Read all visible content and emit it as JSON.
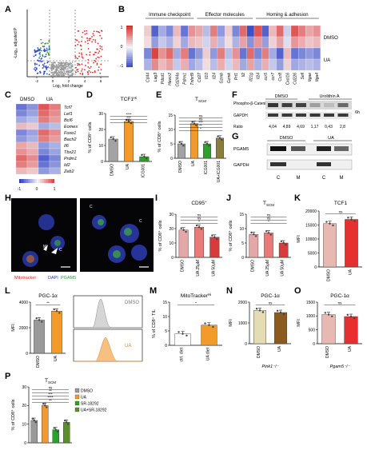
{
  "labels": {
    "A": "A",
    "B": "B",
    "C": "C",
    "D": "D",
    "E": "E",
    "F": "F",
    "G": "G",
    "H": "H",
    "I": "I",
    "J": "J",
    "K": "K",
    "L": "L",
    "M": "M",
    "N": "N",
    "O": "O",
    "P": "P"
  },
  "panelA": {
    "ylabel": "-Log₁₀ adjusted P",
    "xlabel": "Log₂ fold change",
    "xticks": [
      "-2",
      "0",
      "2",
      "4",
      "6"
    ]
  },
  "panelB": {
    "groups": [
      "Immune checkpoint",
      "Effector molecules",
      "Homing & adhesion"
    ],
    "rows": [
      "DMSO",
      "UA"
    ],
    "cols": [
      "Cd44",
      "Lag3",
      "Pdcd1",
      "Havcr2",
      "Cd244a",
      "Pdrm1",
      "Tnfsrf9",
      "Cd27",
      "Il10",
      "Il24",
      "Gzmb",
      "Gzmk",
      "Prf1",
      "Il2",
      "Il21g",
      "Il24",
      "ccr5",
      "ccr7",
      "Ccr8",
      "Cxcl16",
      "Cd226",
      "Sell",
      "Itgae",
      "Itga4"
    ],
    "scale": [
      "1",
      "0",
      "-1"
    ],
    "colors": {
      "high": "#d7302f",
      "low": "#2b3ec1",
      "mid": "#f4f4f8"
    }
  },
  "panelC": {
    "cols": [
      "DMSO",
      "UA"
    ],
    "genes": [
      "Tcf7",
      "Lef1",
      "Bcl6",
      "Eomes",
      "Foxo1",
      "Bach2",
      "Il6",
      "Tbx21",
      "Prdm1",
      "Id2",
      "Zeb2"
    ],
    "scale": [
      "-1",
      "0",
      "1"
    ]
  },
  "panelD": {
    "title": "TCF1",
    "title_sup": "Hi",
    "ylabel": "% of CD8⁺ cells",
    "yticks": [
      "0",
      "10",
      "20",
      "30"
    ],
    "cats": [
      "DMSO",
      "UA",
      "ICG001"
    ],
    "sig": [
      "****",
      "***",
      "****"
    ]
  },
  "panelE": {
    "title": "T",
    "title_sub": "SCM",
    "ylabel": "% of CD8⁺ cells",
    "yticks": [
      "0",
      "5",
      "10",
      "15"
    ],
    "cats": [
      "DMSO",
      "UA",
      "ICG001",
      "UA+ICG001"
    ],
    "sig": [
      "ns",
      "ns",
      "***",
      "**",
      "*"
    ]
  },
  "panelF": {
    "header_left": "DMSO",
    "header_right": "Urolithin A",
    "row1": "Phospho-β-Catenin",
    "row2": "GAPDH",
    "time": "6h",
    "ratio_label": "Ratio",
    "ratios": [
      "4,04",
      "4,89",
      "4,69",
      "1,17",
      "0,43",
      "2,8"
    ]
  },
  "panelG": {
    "header_left": "DMSO",
    "header_right": "UA",
    "row1": "PGAM5",
    "row2": "GAPDH",
    "lanes": [
      "C",
      "M",
      "C",
      "M"
    ]
  },
  "panelH": {
    "legend_red": "Mitotracker",
    "legend_blue": "DAPI",
    "legend_green": "PGAM5",
    "markers": [
      "M",
      "C",
      "C",
      "C"
    ]
  },
  "panelI": {
    "title": "CD95",
    "title_sup": "+",
    "ylabel": "% of CD8⁺ cells",
    "yticks": [
      "0",
      "10",
      "20",
      "30"
    ],
    "cats": [
      "DMSO",
      "UA 25μM",
      "UA 50μM"
    ],
    "sig": [
      "ns",
      "ns",
      "*"
    ]
  },
  "panelJ": {
    "title": "T",
    "title_sub": "SCM",
    "ylabel": "% of CD8⁺ cells",
    "yticks": [
      "0",
      "5",
      "10",
      "15"
    ],
    "cats": [
      "DMSO",
      "UA 25μM",
      "UA 50μM"
    ],
    "sig": [
      "ns",
      "ns",
      "*"
    ]
  },
  "panelK": {
    "title": "TCF1",
    "ylabel": "MFI",
    "yticks": [
      "0",
      "5000",
      "10000",
      "15000",
      "20000"
    ],
    "cats": [
      "DMSO",
      "UA"
    ],
    "sig": [
      "ns"
    ]
  },
  "panelL": {
    "title": "PGC-1α",
    "ylabel": "MFI",
    "yticks": [
      "0",
      "2000",
      "4000"
    ],
    "cats": [
      "DMSO",
      "UA"
    ],
    "sig": [
      "**"
    ],
    "hist_top": "DMSO",
    "hist_bottom": "UA"
  },
  "panelM": {
    "title": "MitoTracker",
    "title_sup": "Hi",
    "ylabel": "% of CD8⁺ TIL",
    "yticks": [
      "0",
      "5",
      "10",
      "15"
    ],
    "cats": [
      "ctrl. diet",
      "UA diet"
    ],
    "sig": [
      "*"
    ]
  },
  "panelN": {
    "title": "PGC-1α",
    "ylabel": "MFI",
    "yticks": [
      "0",
      "1000",
      "2000"
    ],
    "cats": [
      "DMSO",
      "UA"
    ],
    "sig": [
      "ns"
    ],
    "genotype": "Pink1⁻/⁻"
  },
  "panelO": {
    "title": "PGC-1α",
    "ylabel": "MFI",
    "yticks": [
      "0",
      "500",
      "1000",
      "1500"
    ],
    "cats": [
      "DMSO",
      "UA"
    ],
    "sig": [
      "ns"
    ],
    "genotype": "Pgam5⁻/⁻"
  },
  "panelP": {
    "title": "T",
    "title_sub": "SCM",
    "ylabel": "% of CD8⁺ cells",
    "yticks": [
      "0",
      "10",
      "20",
      "30"
    ],
    "legend": [
      "DMSO",
      "UA",
      "SR-18292",
      "UA+SR-18292"
    ],
    "sig": [
      "ns",
      "**",
      "***",
      "****",
      "**"
    ]
  },
  "chart_data": [
    {
      "type": "bar",
      "panel": "D",
      "categories": [
        "DMSO",
        "UA",
        "ICG001"
      ],
      "values": [
        14,
        25,
        3
      ],
      "ylim": [
        0,
        30
      ],
      "colors": [
        "#a3a3a3",
        "#f29b2b",
        "#2ca02c"
      ]
    },
    {
      "type": "bar",
      "panel": "E",
      "categories": [
        "DMSO",
        "UA",
        "ICG001",
        "UA+ICG001"
      ],
      "values": [
        5,
        12,
        5,
        7
      ],
      "ylim": [
        0,
        15
      ],
      "colors": [
        "#a3a3a3",
        "#f29b2b",
        "#2ca02c",
        "#8b7d3a"
      ]
    },
    {
      "type": "bar",
      "panel": "I",
      "categories": [
        "DMSO",
        "UA 25μM",
        "UA 50μM"
      ],
      "values": [
        19,
        21,
        14
      ],
      "ylim": [
        0,
        30
      ],
      "colors": [
        "#e4a7a7",
        "#ea7a7a",
        "#d93a3a"
      ]
    },
    {
      "type": "bar",
      "panel": "J",
      "categories": [
        "DMSO",
        "UA 25μM",
        "UA 50μM"
      ],
      "values": [
        8,
        8.5,
        5
      ],
      "ylim": [
        0,
        15
      ],
      "colors": [
        "#e4a7a7",
        "#ea7a7a",
        "#d93a3a"
      ]
    },
    {
      "type": "bar",
      "panel": "K",
      "categories": [
        "DMSO",
        "UA"
      ],
      "values": [
        15500,
        17000
      ],
      "ylim": [
        0,
        20000
      ],
      "colors": [
        "#e8b9b2",
        "#e82f2f"
      ]
    },
    {
      "type": "bar",
      "panel": "L",
      "categories": [
        "DMSO",
        "UA"
      ],
      "values": [
        2600,
        3300
      ],
      "ylim": [
        0,
        4000
      ],
      "colors": [
        "#9a9a9a",
        "#f29b2b"
      ]
    },
    {
      "type": "bar",
      "panel": "M",
      "categories": [
        "ctrl. diet",
        "UA diet"
      ],
      "values": [
        4,
        7
      ],
      "ylim": [
        0,
        15
      ],
      "colors": [
        "#ffffff",
        "#f29b2b"
      ]
    },
    {
      "type": "bar",
      "panel": "N",
      "categories": [
        "DMSO",
        "UA"
      ],
      "values": [
        1600,
        1500
      ],
      "ylim": [
        0,
        2000
      ],
      "colors": [
        "#e6dcb4",
        "#8b5a1e"
      ]
    },
    {
      "type": "bar",
      "panel": "O",
      "categories": [
        "DMSO",
        "UA"
      ],
      "values": [
        1050,
        980
      ],
      "ylim": [
        0,
        1500
      ],
      "colors": [
        "#e8b9b2",
        "#e82f2f"
      ]
    },
    {
      "type": "bar",
      "panel": "P",
      "categories": [
        "DMSO",
        "UA",
        "SR-18292",
        "UA+SR-18292"
      ],
      "values": [
        12,
        20,
        7,
        11
      ],
      "ylim": [
        0,
        30
      ],
      "colors": [
        "#9a9a9a",
        "#f29b2b",
        "#2ca02c",
        "#5a8f2b"
      ]
    }
  ]
}
